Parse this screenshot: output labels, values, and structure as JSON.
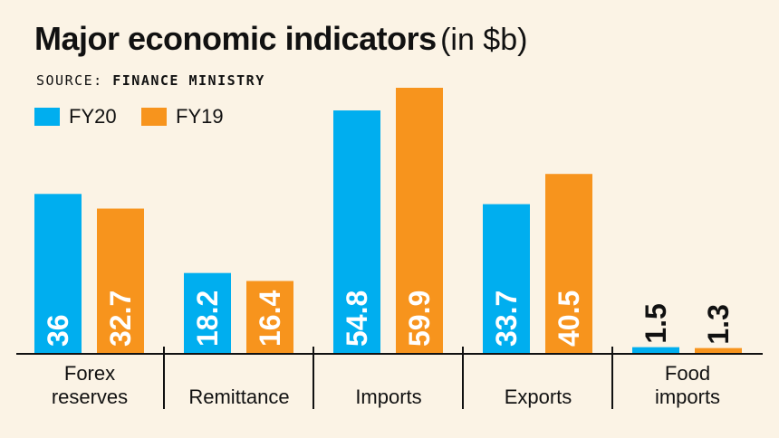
{
  "title": "Major economic indicators",
  "title_unit": "(in $b)",
  "source_label": "SOURCE:",
  "source_name": "FINANCE MINISTRY",
  "colors": {
    "FY20": "#00aeef",
    "FY19": "#f7941d"
  },
  "chart_data": {
    "type": "bar",
    "title": "Major economic indicators (in $b)",
    "xlabel": "",
    "ylabel": "",
    "categories": [
      "Forex reserves",
      "Remittance",
      "Imports",
      "Exports",
      "Food imports"
    ],
    "category_lines": [
      [
        "Forex",
        "reserves"
      ],
      [
        "Remittance"
      ],
      [
        "Imports"
      ],
      [
        "Exports"
      ],
      [
        "Food",
        "imports"
      ]
    ],
    "series": [
      {
        "name": "FY20",
        "values": [
          36,
          18.2,
          54.8,
          33.7,
          1.5
        ]
      },
      {
        "name": "FY19",
        "values": [
          32.7,
          16.4,
          59.9,
          40.5,
          1.3
        ]
      }
    ],
    "value_labels": [
      [
        "36",
        "18.2",
        "54.8",
        "33.7",
        "1.5"
      ],
      [
        "32.7",
        "16.4",
        "59.9",
        "40.5",
        "1.3"
      ]
    ],
    "ylim": [
      0,
      64
    ],
    "grid": false,
    "legend": "top-left"
  }
}
